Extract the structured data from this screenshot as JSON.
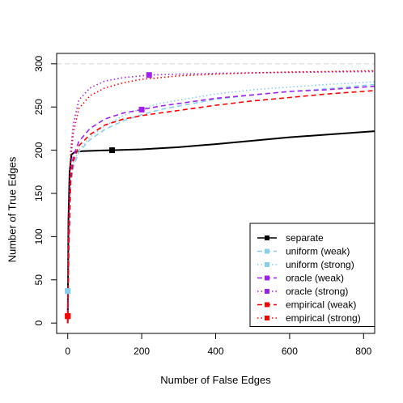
{
  "chart_data": {
    "type": "line",
    "title": "",
    "xlabel": "Number of False Edges",
    "ylabel": "Number of True Edges",
    "xlim": [
      -30,
      830
    ],
    "ylim": [
      -12,
      312
    ],
    "x_ticks": [
      0,
      200,
      400,
      600,
      800
    ],
    "y_ticks": [
      0,
      50,
      100,
      150,
      200,
      250,
      300
    ],
    "reference_line": {
      "y": 300,
      "color": "#d3d3d3",
      "style": "dashed"
    },
    "legend_position": "bottom-right",
    "series": [
      {
        "name": "separate",
        "color": "#000000",
        "style": "solid",
        "x": [
          0,
          2,
          5,
          10,
          20,
          40,
          80,
          120,
          200,
          300,
          400,
          500,
          600,
          700,
          830
        ],
        "y": [
          0,
          120,
          175,
          195,
          198,
          199,
          199.5,
          200,
          201,
          203.5,
          207,
          211,
          215,
          218,
          222
        ],
        "marker": {
          "x": 120,
          "y": 200
        }
      },
      {
        "name": "uniform (weak)",
        "color": "#87ceeb",
        "style": "dashed",
        "x": [
          0,
          3,
          8,
          15,
          30,
          60,
          100,
          150,
          200,
          250,
          300,
          400,
          500,
          600,
          700,
          830
        ],
        "y": [
          0,
          80,
          160,
          180,
          198,
          212,
          224,
          234,
          241,
          247,
          251,
          259,
          264,
          268,
          271,
          276
        ],
        "marker": {
          "x": 0,
          "y": 37
        }
      },
      {
        "name": "uniform (strong)",
        "color": "#87ceeb",
        "style": "dotted",
        "x": [
          0,
          3,
          8,
          15,
          30,
          60,
          100,
          150,
          200,
          250,
          300,
          400,
          500,
          600,
          700,
          830
        ],
        "y": [
          0,
          85,
          165,
          185,
          200,
          215,
          228,
          240,
          248,
          254,
          258,
          265,
          270,
          273,
          276,
          279
        ],
        "marker": {
          "x": 0,
          "y": 37
        }
      },
      {
        "name": "oracle (weak)",
        "color": "#a020f0",
        "style": "dashed",
        "x": [
          0,
          3,
          8,
          15,
          30,
          60,
          100,
          150,
          200,
          250,
          300,
          400,
          500,
          600,
          700,
          830
        ],
        "y": [
          0,
          110,
          175,
          193,
          210,
          225,
          236,
          243,
          247,
          251,
          254,
          260,
          264,
          268,
          270,
          274
        ],
        "marker": {
          "x": 200,
          "y": 247
        }
      },
      {
        "name": "oracle (strong)",
        "color": "#a020f0",
        "style": "dotted",
        "x": [
          0,
          3,
          8,
          15,
          30,
          60,
          100,
          150,
          200,
          220,
          300,
          400,
          500,
          600,
          700,
          830
        ],
        "y": [
          0,
          130,
          200,
          230,
          258,
          272,
          280,
          284,
          286,
          287,
          288,
          289,
          289.5,
          290,
          290.5,
          291
        ],
        "marker": {
          "x": 220,
          "y": 287
        }
      },
      {
        "name": "empirical (weak)",
        "color": "#ff0000",
        "style": "dashed",
        "x": [
          0,
          3,
          8,
          15,
          30,
          60,
          100,
          150,
          200,
          215,
          300,
          400,
          500,
          600,
          700,
          830
        ],
        "y": [
          0,
          90,
          165,
          187,
          205,
          218,
          229,
          236,
          240,
          241,
          246,
          252,
          257,
          261,
          265,
          269
        ],
        "marker": {
          "x": 0,
          "y": 8
        }
      },
      {
        "name": "empirical (strong)",
        "color": "#ff0000",
        "style": "dotted",
        "x": [
          0,
          3,
          8,
          15,
          30,
          60,
          100,
          150,
          200,
          300,
          400,
          500,
          600,
          700,
          830
        ],
        "y": [
          0,
          120,
          190,
          220,
          248,
          263,
          272,
          278,
          282,
          286,
          288,
          289.5,
          290.5,
          291,
          292
        ],
        "marker": {
          "x": 0,
          "y": 8
        }
      }
    ]
  }
}
